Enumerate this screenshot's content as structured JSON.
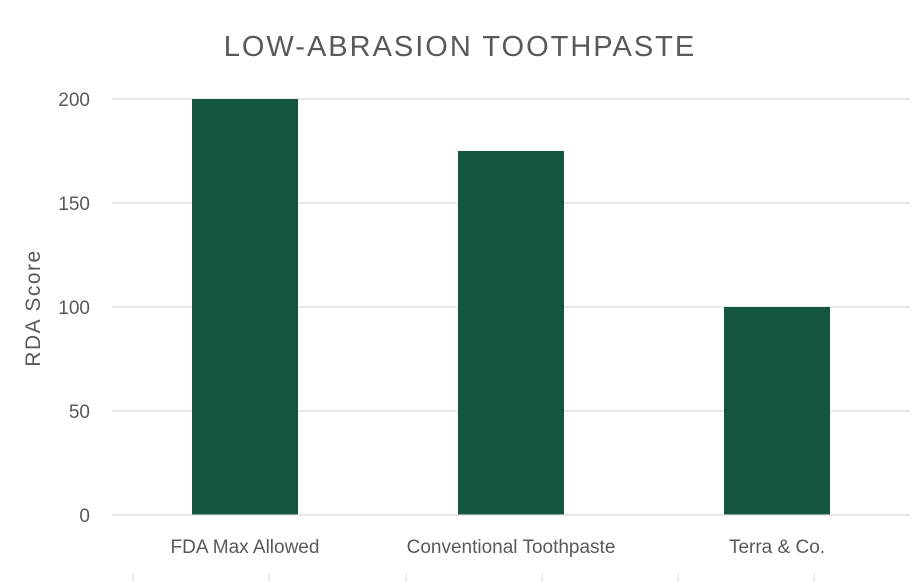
{
  "chart_data": {
    "type": "bar",
    "title": "LOW-ABRASION TOOTHPASTE",
    "xlabel": "",
    "ylabel": "RDA Score",
    "categories": [
      "FDA Max Allowed",
      "Conventional Toothpaste",
      "Terra & Co."
    ],
    "values": [
      200,
      175,
      100
    ],
    "ylim": [
      0,
      200
    ],
    "yticks": [
      0,
      50,
      100,
      150,
      200
    ],
    "grid": true,
    "legend": "none",
    "colors": {
      "bar": "#14553f",
      "text": "#595959",
      "grid": "#d9d9d9"
    }
  }
}
